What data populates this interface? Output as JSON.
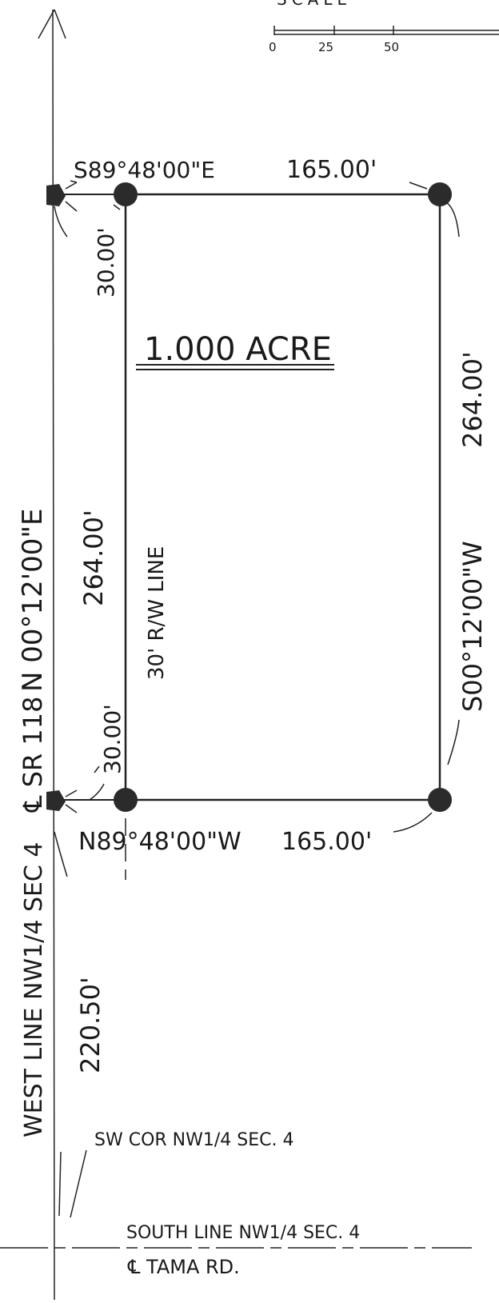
{
  "scale": {
    "partial_label": "SCALE",
    "ticks": [
      "0",
      "25",
      "50"
    ]
  },
  "area": "1.000 ACRE",
  "bearings": {
    "north": "S89°48'00\"E",
    "north_length": "165.00'",
    "south": "N89°48'00\"W",
    "south_length": "165.00'",
    "east": "S00°12'00\"W",
    "east_length": "264.00'",
    "west": "N 00°12'00\"E",
    "west_length": "264.00'"
  },
  "offsets": {
    "top_offset": "30.00'",
    "bottom_offset": "30.00'",
    "south_tie": "220.50'"
  },
  "labels": {
    "row_line": "30' R/W LINE",
    "centerline_road": "℄ SR 118",
    "west_line": "WEST LINE NW1/4 SEC 4",
    "sw_corner": "SW COR NW1/4 SEC. 4",
    "south_line": "SOUTH LINE NW1/4 SEC. 4",
    "tama_road": "℄ TAMA RD."
  },
  "colors": {
    "ink": "#1a1a1a",
    "monument": "#2b2b2b"
  }
}
